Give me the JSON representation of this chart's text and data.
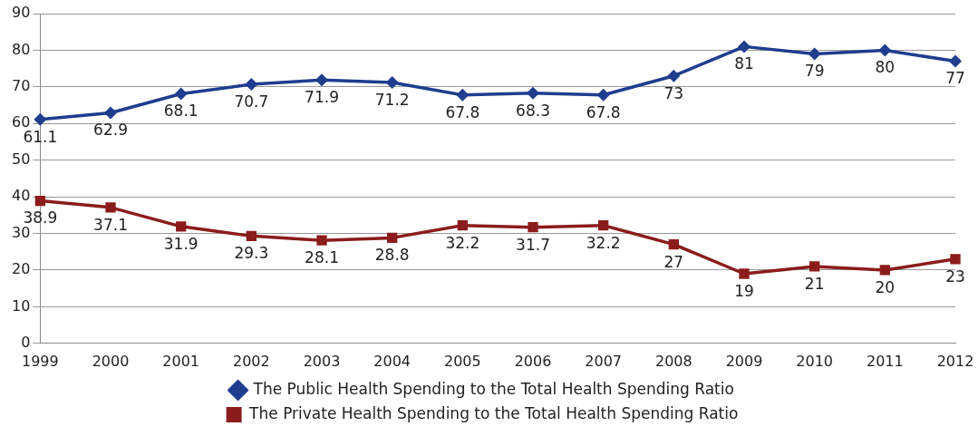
{
  "chart_data": {
    "type": "line",
    "categories": [
      "1999",
      "2000",
      "2001",
      "2002",
      "2003",
      "2004",
      "2005",
      "2006",
      "2007",
      "2008",
      "2009",
      "2010",
      "2011",
      "2012"
    ],
    "series": [
      {
        "name": "The Public Health Spending to the Total Health Spending Ratio",
        "color": "#1f3d8f",
        "marker": "diamond",
        "values": [
          61.1,
          62.9,
          68.1,
          70.7,
          71.9,
          71.2,
          67.8,
          68.3,
          67.8,
          73,
          81,
          79,
          80,
          77
        ]
      },
      {
        "name": "The Private Health Spending to the Total Health Spending Ratio",
        "color": "#8c1c1c",
        "marker": "square",
        "values": [
          38.9,
          37.1,
          31.9,
          29.3,
          28.1,
          28.8,
          32.2,
          31.7,
          32.2,
          27,
          19,
          21,
          20,
          23
        ]
      }
    ],
    "ylim": [
      0,
      90
    ],
    "yticks": [
      0,
      10,
      20,
      30,
      40,
      50,
      60,
      70,
      80,
      90
    ],
    "grid": "y",
    "legend": "bottom",
    "data_labels": true,
    "line_style": "solid"
  }
}
